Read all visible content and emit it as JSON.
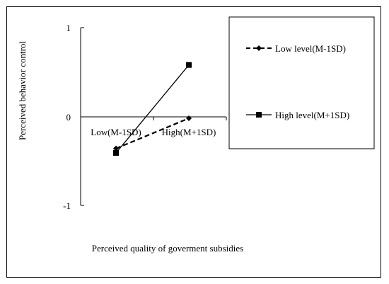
{
  "chart_data": {
    "type": "line",
    "title": "",
    "xlabel": "Perceived quality of goverment subsidies",
    "ylabel": "Perceived behavior control",
    "categories": [
      "Low(M-1SD)",
      "High(M+1SD)"
    ],
    "ylim": [
      -1,
      1
    ],
    "yticks": [
      "1",
      "0",
      "-1"
    ],
    "series": [
      {
        "name": "Low level(M-1SD)",
        "values": [
          -0.36,
          -0.02
        ],
        "line": "dashed",
        "marker": "diamond"
      },
      {
        "name": "High level(M+1SD)",
        "values": [
          -0.41,
          0.58
        ],
        "line": "solid",
        "marker": "square"
      }
    ],
    "grid": false,
    "legend_position": "right"
  }
}
